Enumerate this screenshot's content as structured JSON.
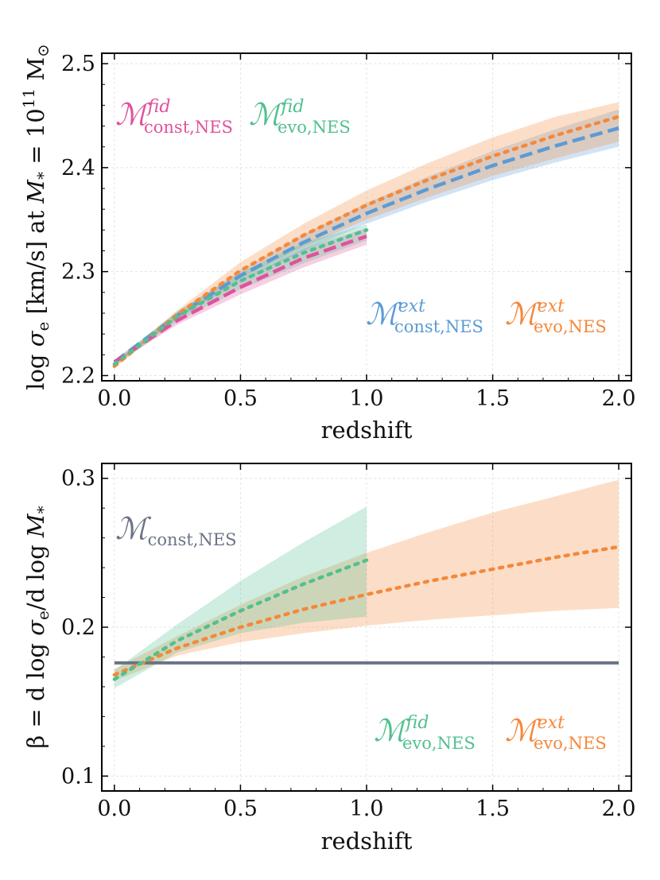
{
  "chart_data": [
    {
      "type": "line",
      "xlabel": "redshift",
      "ylabel": "log σ_e [km/s] at M_* = 10^11 M_⊙",
      "ylabel_parts": {
        "a": "log ",
        "b": "σ",
        "c": "e",
        "d": " [km/s] at ",
        "e": "M",
        "f": "*",
        "g": " = 10",
        "h": "11",
        "i": " M",
        "j": "⊙"
      },
      "xlim": [
        -0.05,
        2.05
      ],
      "ylim": [
        2.195,
        2.51
      ],
      "xticks": [
        0.0,
        0.5,
        1.0,
        1.5,
        2.0
      ],
      "xtick_labels": [
        "0.0",
        "0.5",
        "1.0",
        "1.5",
        "2.0"
      ],
      "yticks": [
        2.2,
        2.3,
        2.4,
        2.5
      ],
      "ytick_labels": [
        "2.2",
        "2.3",
        "2.4",
        "2.5"
      ],
      "grid": true,
      "series": [
        {
          "name": "M_const,NES^ext",
          "style": "dashed",
          "color": "#5b9bd5",
          "x": [
            0,
            0.25,
            0.5,
            0.75,
            1.0,
            1.25,
            1.5,
            1.75,
            2.0
          ],
          "values": [
            2.213,
            2.258,
            2.296,
            2.328,
            2.356,
            2.38,
            2.402,
            2.421,
            2.438
          ],
          "band_lower": [
            2.211,
            2.255,
            2.291,
            2.32,
            2.346,
            2.368,
            2.388,
            2.405,
            2.42
          ],
          "band_upper": [
            2.215,
            2.261,
            2.301,
            2.336,
            2.366,
            2.392,
            2.416,
            2.437,
            2.456
          ]
        },
        {
          "name": "M_evo,NES^ext",
          "style": "dotted",
          "color": "#f5883a",
          "x": [
            0,
            0.25,
            0.5,
            0.75,
            1.0,
            1.25,
            1.5,
            1.75,
            2.0
          ],
          "values": [
            2.209,
            2.259,
            2.301,
            2.335,
            2.364,
            2.389,
            2.411,
            2.431,
            2.449
          ],
          "band_lower": [
            2.207,
            2.255,
            2.293,
            2.324,
            2.35,
            2.372,
            2.392,
            2.409,
            2.425
          ],
          "band_upper": [
            2.211,
            2.263,
            2.309,
            2.346,
            2.378,
            2.405,
            2.429,
            2.449,
            2.463
          ]
        },
        {
          "name": "M_const,NES^fid",
          "style": "dashed",
          "color": "#e0529c",
          "x": [
            0,
            0.25,
            0.5,
            0.75,
            1.0
          ],
          "values": [
            2.213,
            2.253,
            2.285,
            2.313,
            2.334
          ],
          "band_lower": [
            2.211,
            2.249,
            2.278,
            2.304,
            2.326
          ],
          "band_upper": [
            2.215,
            2.257,
            2.292,
            2.322,
            2.342
          ]
        },
        {
          "name": "M_evo,NES^fid",
          "style": "dotted",
          "color": "#52c08f",
          "x": [
            0,
            0.25,
            0.5,
            0.75,
            1.0
          ],
          "values": [
            2.211,
            2.257,
            2.291,
            2.318,
            2.34
          ],
          "band_lower": [
            2.209,
            2.252,
            2.283,
            2.308,
            2.33
          ],
          "band_upper": [
            2.213,
            2.262,
            2.299,
            2.328,
            2.345
          ]
        }
      ],
      "legend": [
        {
          "base": "ℳ",
          "sup": "fid",
          "sub": "const,NES",
          "color": "#e0529c"
        },
        {
          "base": "ℳ",
          "sup": "fid",
          "sub": "evo,NES",
          "color": "#52c08f"
        },
        {
          "base": "ℳ",
          "sup": "ext",
          "sub": "const,NES",
          "color": "#5b9bd5"
        },
        {
          "base": "ℳ",
          "sup": "ext",
          "sub": "evo,NES",
          "color": "#f5883a"
        }
      ]
    },
    {
      "type": "line",
      "xlabel": "redshift",
      "ylabel": "β = d log σ_e / d log M_*",
      "ylabel_parts": {
        "a": "β = d log ",
        "b": "σ",
        "c": "e",
        "d": "/d log ",
        "e": "M",
        "f": "*"
      },
      "xlim": [
        -0.05,
        2.05
      ],
      "ylim": [
        0.09,
        0.31
      ],
      "xticks": [
        0.0,
        0.5,
        1.0,
        1.5,
        2.0
      ],
      "xtick_labels": [
        "0.0",
        "0.5",
        "1.0",
        "1.5",
        "2.0"
      ],
      "yticks": [
        0.1,
        0.2,
        0.3
      ],
      "ytick_labels": [
        "0.1",
        "0.2",
        "0.3"
      ],
      "grid": true,
      "series": [
        {
          "name": "M_const,NES",
          "style": "solid",
          "color": "#6b7387",
          "x": [
            0,
            2.0
          ],
          "values": [
            0.176,
            0.176
          ]
        },
        {
          "name": "M_evo,NES^ext",
          "style": "dotted",
          "color": "#f5883a",
          "x": [
            0,
            0.25,
            0.5,
            0.75,
            1.0,
            1.25,
            1.5,
            1.75,
            2.0
          ],
          "values": [
            0.168,
            0.186,
            0.2,
            0.212,
            0.222,
            0.231,
            0.239,
            0.247,
            0.254
          ],
          "band_lower": [
            0.164,
            0.181,
            0.19,
            0.196,
            0.201,
            0.205,
            0.208,
            0.211,
            0.213
          ],
          "band_upper": [
            0.172,
            0.194,
            0.215,
            0.234,
            0.25,
            0.264,
            0.277,
            0.288,
            0.299
          ]
        },
        {
          "name": "M_evo,NES^fid",
          "style": "dotted",
          "color": "#52c08f",
          "x": [
            0,
            0.25,
            0.5,
            0.75,
            1.0
          ],
          "values": [
            0.165,
            0.191,
            0.211,
            0.229,
            0.245
          ],
          "band_lower": [
            0.159,
            0.183,
            0.196,
            0.203,
            0.207
          ],
          "band_upper": [
            0.171,
            0.202,
            0.231,
            0.257,
            0.281
          ]
        }
      ],
      "legend": [
        {
          "base": "ℳ",
          "sup": "",
          "sub": "const,NES",
          "color": "#6b7387"
        },
        {
          "base": "ℳ",
          "sup": "fid",
          "sub": "evo,NES",
          "color": "#52c08f"
        },
        {
          "base": "ℳ",
          "sup": "ext",
          "sub": "evo,NES",
          "color": "#f5883a"
        }
      ]
    }
  ]
}
